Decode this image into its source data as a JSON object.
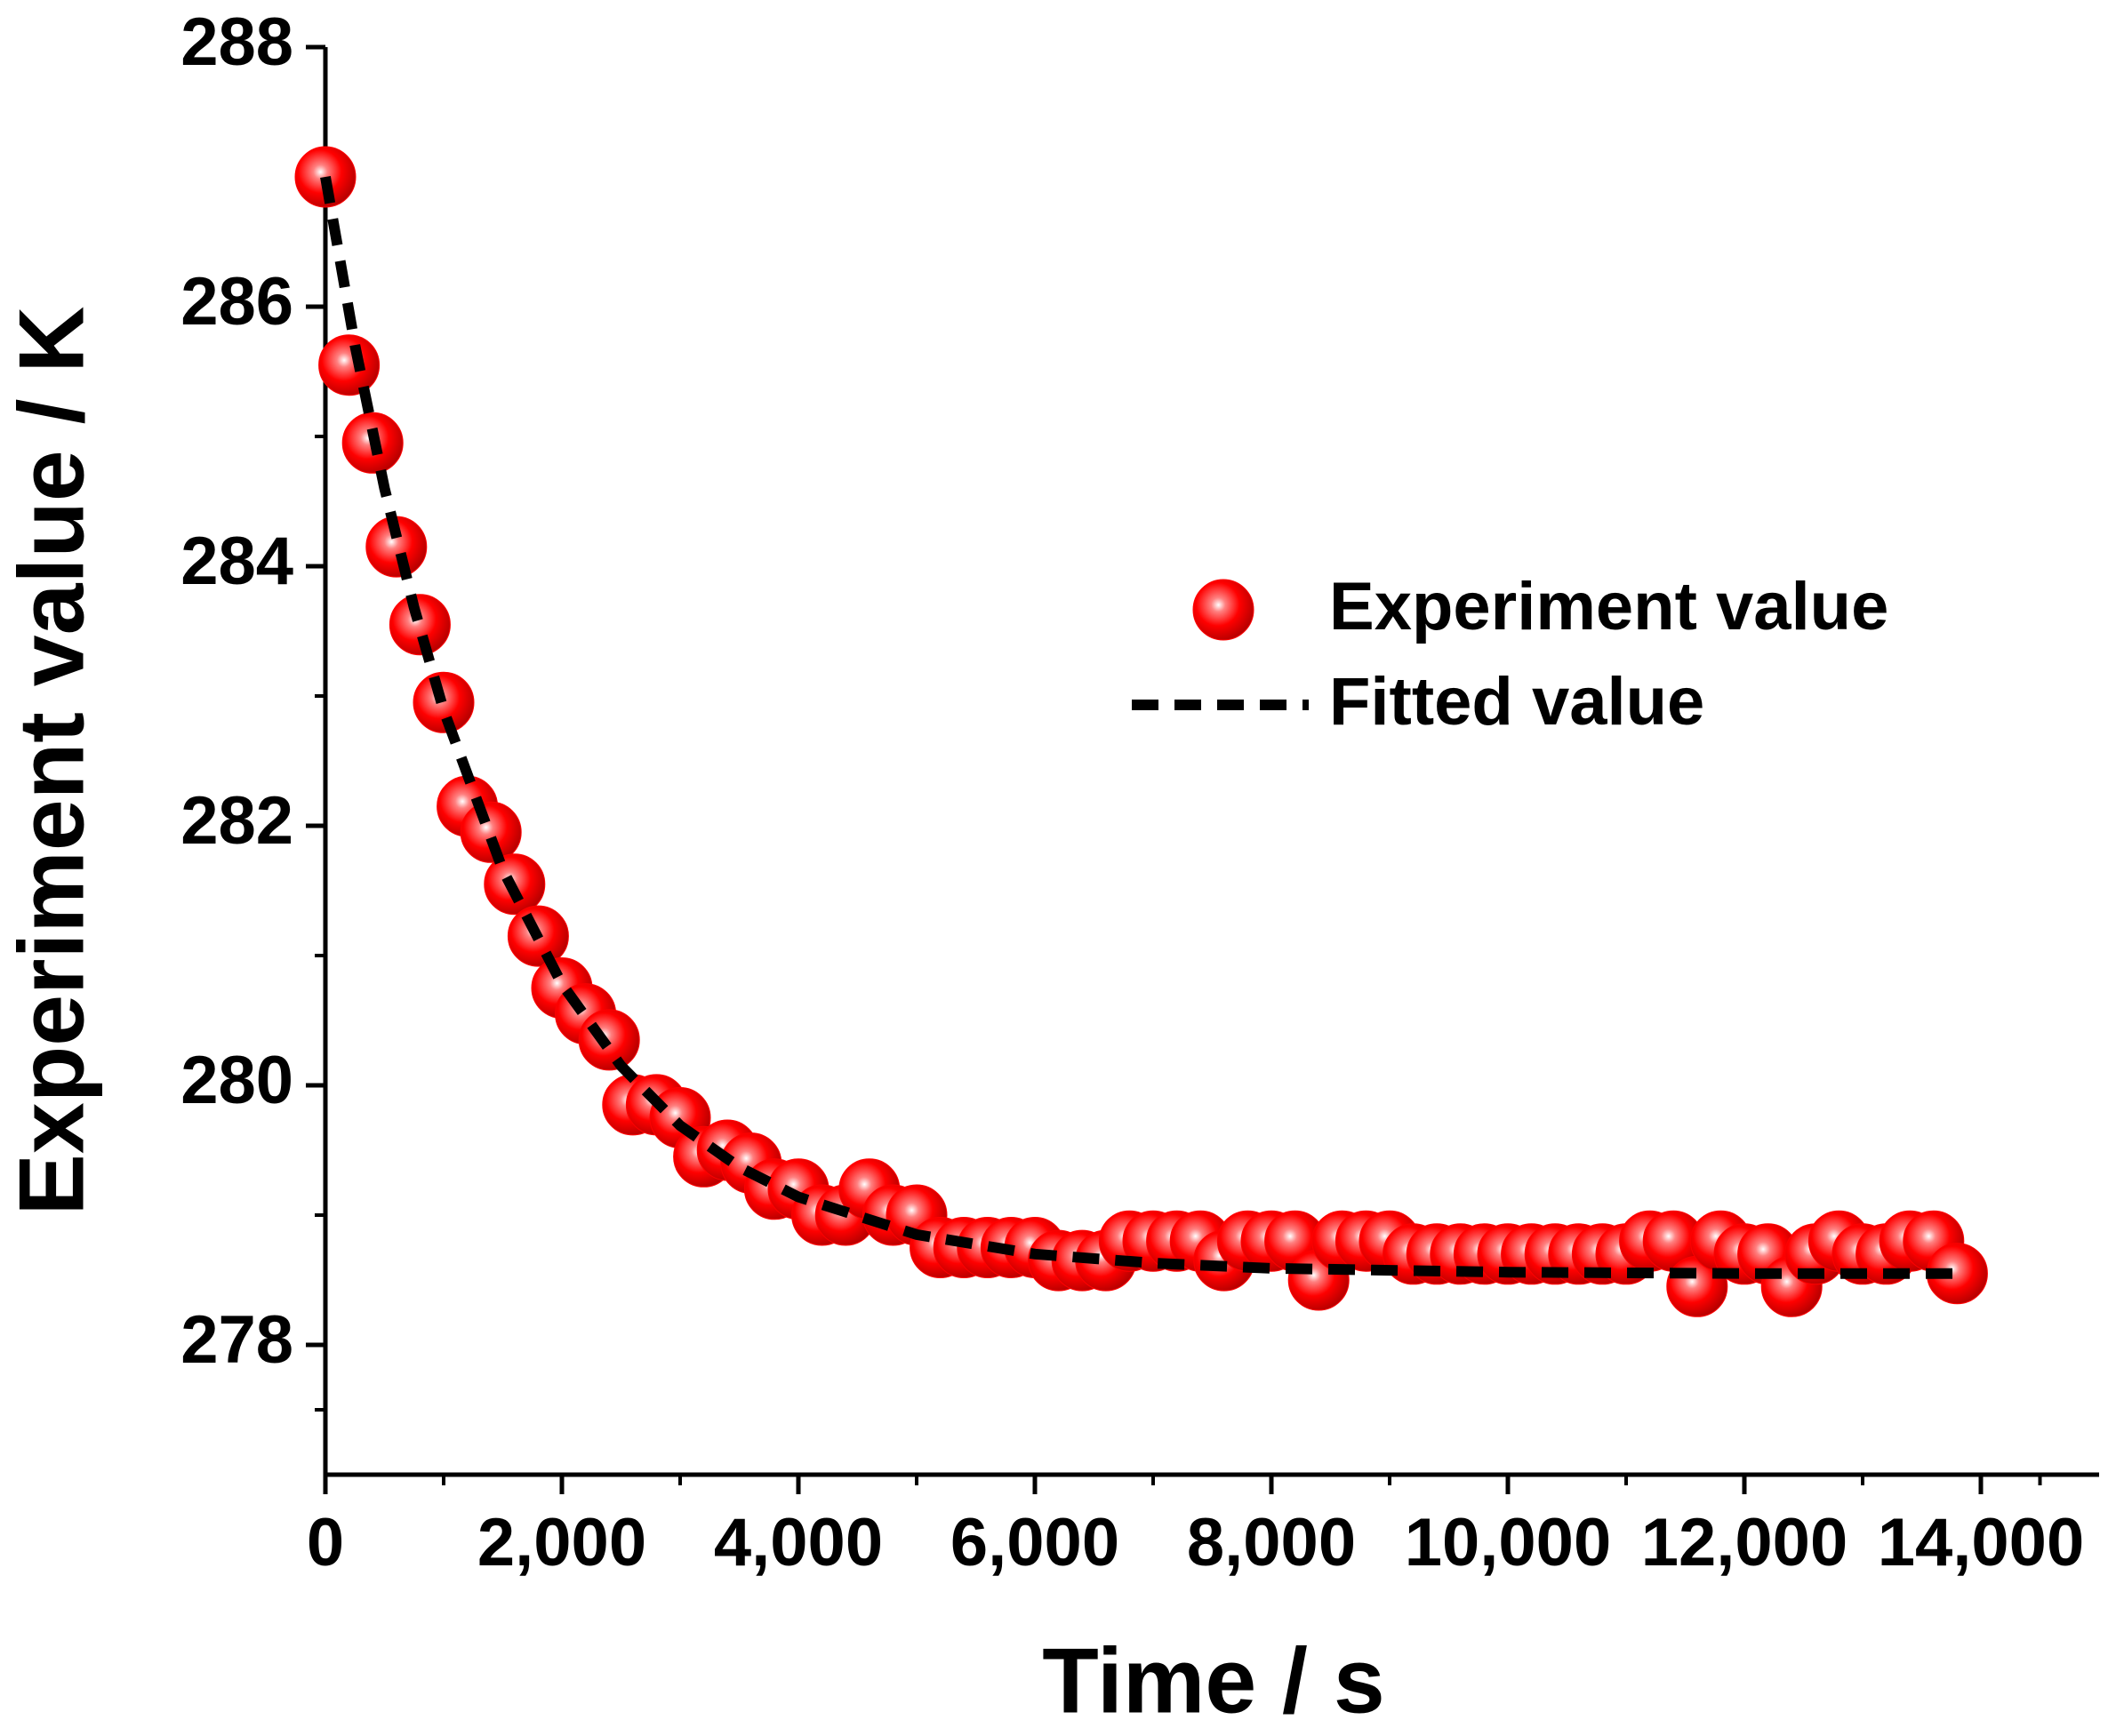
{
  "chart_data": {
    "type": "scatter",
    "xlabel": "Time / s",
    "ylabel": "Experiment value / K",
    "xlim": [
      0,
      15000
    ],
    "ylim": [
      277,
      288
    ],
    "xticks": [
      0,
      {
        "value": 2000,
        "label": "2,000"
      },
      {
        "value": 4000,
        "label": "4,000"
      },
      {
        "value": 6000,
        "label": "6,000"
      },
      {
        "value": 8000,
        "label": "8,000"
      },
      {
        "value": 10000,
        "label": "10,000"
      },
      {
        "value": 12000,
        "label": "12,000"
      },
      {
        "value": 14000,
        "label": "14,000"
      }
    ],
    "yticks": [
      278,
      280,
      282,
      284,
      286,
      288
    ],
    "series": [
      {
        "name": "Experiment value",
        "color": "#ff0000",
        "x": [
          0,
          200,
          400,
          600,
          800,
          1000,
          1200,
          1400,
          1600,
          1800,
          2000,
          2200,
          2400,
          2600,
          2800,
          3000,
          3200,
          3400,
          3600,
          3800,
          4000,
          4200,
          4400,
          4600,
          4800,
          5000,
          5200,
          5400,
          5600,
          5800,
          6000,
          6200,
          6400,
          6600,
          6800,
          7000,
          7200,
          7400,
          7600,
          7800,
          8000,
          8200,
          8400,
          8600,
          8800,
          9000,
          9200,
          9400,
          9600,
          9800,
          10000,
          10200,
          10400,
          10600,
          10800,
          11000,
          11200,
          11400,
          11600,
          11800,
          12000,
          12200,
          12400,
          12600,
          12800,
          13000,
          13200,
          13400,
          13600,
          13800
        ],
        "values": [
          287.0,
          285.55,
          284.95,
          284.15,
          283.55,
          282.95,
          282.15,
          281.95,
          281.55,
          281.15,
          280.75,
          280.55,
          280.35,
          279.85,
          279.85,
          279.75,
          279.45,
          279.5,
          279.4,
          279.2,
          279.2,
          279.0,
          279.0,
          279.2,
          279.0,
          279.0,
          278.75,
          278.75,
          278.75,
          278.75,
          278.75,
          278.65,
          278.65,
          278.65,
          278.8,
          278.8,
          278.8,
          278.8,
          278.65,
          278.8,
          278.8,
          278.8,
          278.5,
          278.8,
          278.8,
          278.8,
          278.7,
          278.7,
          278.7,
          278.7,
          278.7,
          278.7,
          278.7,
          278.7,
          278.7,
          278.7,
          278.8,
          278.8,
          278.45,
          278.8,
          278.7,
          278.7,
          278.45,
          278.7,
          278.8,
          278.7,
          278.7,
          278.8,
          278.8,
          278.55
        ]
      },
      {
        "name": "Fitted value",
        "color": "#000000",
        "x": [
          0,
          250,
          500,
          750,
          1000,
          1500,
          2000,
          2500,
          3000,
          3500,
          4000,
          5000,
          6000,
          7000,
          8000,
          10000,
          12000,
          13800
        ],
        "values": [
          287.0,
          285.7,
          284.6,
          283.68,
          282.89,
          281.66,
          280.78,
          280.15,
          279.69,
          279.37,
          279.14,
          278.85,
          278.7,
          278.63,
          278.59,
          278.56,
          278.55,
          278.55
        ]
      }
    ]
  }
}
